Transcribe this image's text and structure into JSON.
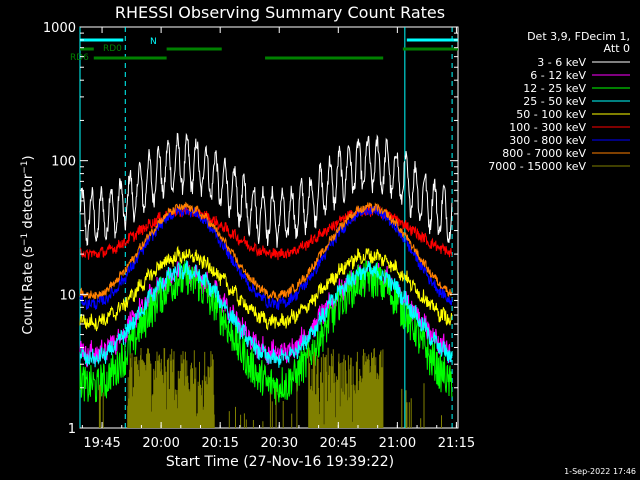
{
  "chart_data": {
    "type": "line",
    "title": "RHESSI Observing Summary Count Rates",
    "xlabel": "Start Time (27-Nov-16 19:39:22)",
    "ylabel_main": "Count Rate (s",
    "ylabel_sup1": "−1",
    "ylabel_mid": " detector",
    "ylabel_sup2": "−1",
    "ylabel_end": ")",
    "y_scale": "log",
    "ylim": [
      1,
      1000
    ],
    "xlim_minutes": [
      0,
      96
    ],
    "x_ticks": [
      {
        "label": "19:45",
        "minute": 5.6
      },
      {
        "label": "20:00",
        "minute": 20.6
      },
      {
        "label": "20:15",
        "minute": 35.6
      },
      {
        "label": "20:30",
        "minute": 50.6
      },
      {
        "label": "20:45",
        "minute": 65.6
      },
      {
        "label": "21:00",
        "minute": 80.6
      },
      {
        "label": "21:15",
        "minute": 95.6
      }
    ],
    "y_ticks": [
      {
        "label": "1",
        "value": 1
      },
      {
        "label": "10",
        "value": 10
      },
      {
        "label": "100",
        "value": 100
      },
      {
        "label": "1000",
        "value": 1000
      }
    ],
    "legend_header": [
      "Det 3,9, FDecim 1,",
      "Att 0"
    ],
    "series": [
      {
        "name": "3 - 6 keV",
        "color": "#ffffff",
        "base": 60,
        "orbit": 0.2,
        "ripple": 0.18,
        "noise": 0.06
      },
      {
        "name": "6 - 12 keV",
        "color": "#ff00ff",
        "base": 7.2,
        "orbit": 0.3,
        "ripple": 0.03,
        "noise": 0.08
      },
      {
        "name": "12 - 25 keV",
        "color": "#00ff00",
        "base": 5.2,
        "orbit": 0.4,
        "ripple": 0.02,
        "noise": 0.14
      },
      {
        "name": "25 - 50 keV",
        "color": "#00ffff",
        "base": 7.0,
        "orbit": 0.33,
        "ripple": 0.02,
        "noise": 0.06
      },
      {
        "name": "50 - 100 keV",
        "color": "#ffff00",
        "base": 11.0,
        "orbit": 0.25,
        "ripple": 0.02,
        "noise": 0.05
      },
      {
        "name": "100 - 300 keV",
        "color": "#ff0000",
        "base": 29.0,
        "orbit": 0.16,
        "ripple": 0.01,
        "noise": 0.04
      },
      {
        "name": "300 - 800 keV",
        "color": "#0000ff",
        "base": 19.0,
        "orbit": 0.35,
        "ripple": 0.01,
        "noise": 0.04
      },
      {
        "name": "800 - 7000 keV",
        "color": "#ff8000",
        "base": 21.0,
        "orbit": 0.33,
        "ripple": 0.01,
        "noise": 0.03
      },
      {
        "name": "7000 - 15000 keV",
        "color": "#808000",
        "base": 1.4,
        "orbit": 0.0,
        "ripple": 0.0,
        "noise": 0.3
      }
    ],
    "flag_bars": [
      {
        "label": "N",
        "color": "#00ffff",
        "row": "top",
        "segments": [
          [
            0,
            11
          ],
          [
            83,
            96
          ]
        ]
      },
      {
        "label": "RD0",
        "color": "#008000",
        "row": "mid",
        "segments": [
          [
            0,
            3.5
          ],
          [
            22,
            36
          ],
          [
            82,
            96
          ]
        ]
      },
      {
        "label": "RD6",
        "color": "#008000",
        "row": "low",
        "segments": [
          [
            3.5,
            22
          ],
          [
            47,
            77
          ]
        ]
      }
    ],
    "vertical_lines": [
      {
        "minute": 0,
        "style": "solid"
      },
      {
        "minute": 11.5,
        "style": "dashed"
      },
      {
        "minute": 82.5,
        "style": "solid"
      },
      {
        "minute": 94.5,
        "style": "dashed"
      }
    ],
    "footer_stamp": "1-Sep-2022 17:46"
  }
}
